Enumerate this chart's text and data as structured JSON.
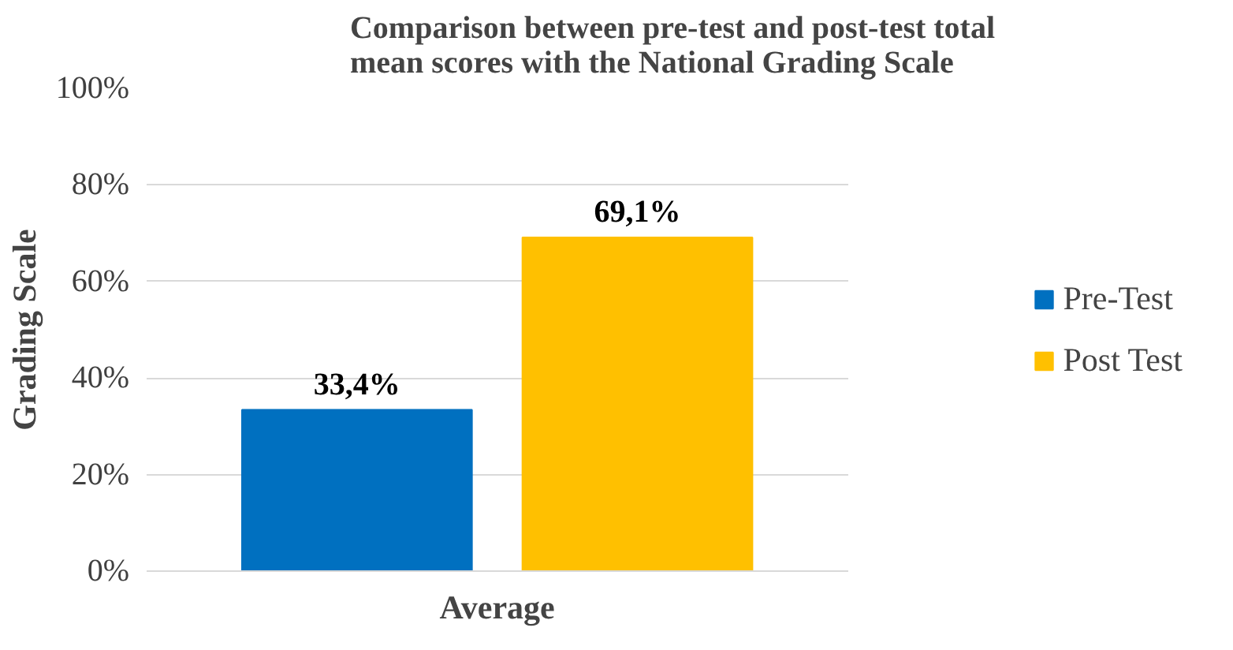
{
  "chart_data": {
    "type": "bar",
    "title": "Comparison between pre-test and post-test total mean scores with the National Grading Scale",
    "ylabel": "Grading Scale",
    "categories": [
      "Average"
    ],
    "series": [
      {
        "name": "Pre-Test",
        "color": "#0070c0",
        "values": [
          33.4
        ],
        "value_labels": [
          "33,4%"
        ]
      },
      {
        "name": "Post Test",
        "color": "#ffc000",
        "values": [
          69.1
        ],
        "value_labels": [
          "69,1%"
        ]
      }
    ],
    "ylim": [
      0,
      100
    ],
    "yticks": [
      {
        "value": 0,
        "label": "0%"
      },
      {
        "value": 20,
        "label": "20%"
      },
      {
        "value": 40,
        "label": "40%"
      },
      {
        "value": 60,
        "label": "60%"
      },
      {
        "value": 80,
        "label": "80%"
      },
      {
        "value": 100,
        "label": "100%"
      }
    ],
    "grid": "y",
    "legend": "right"
  }
}
